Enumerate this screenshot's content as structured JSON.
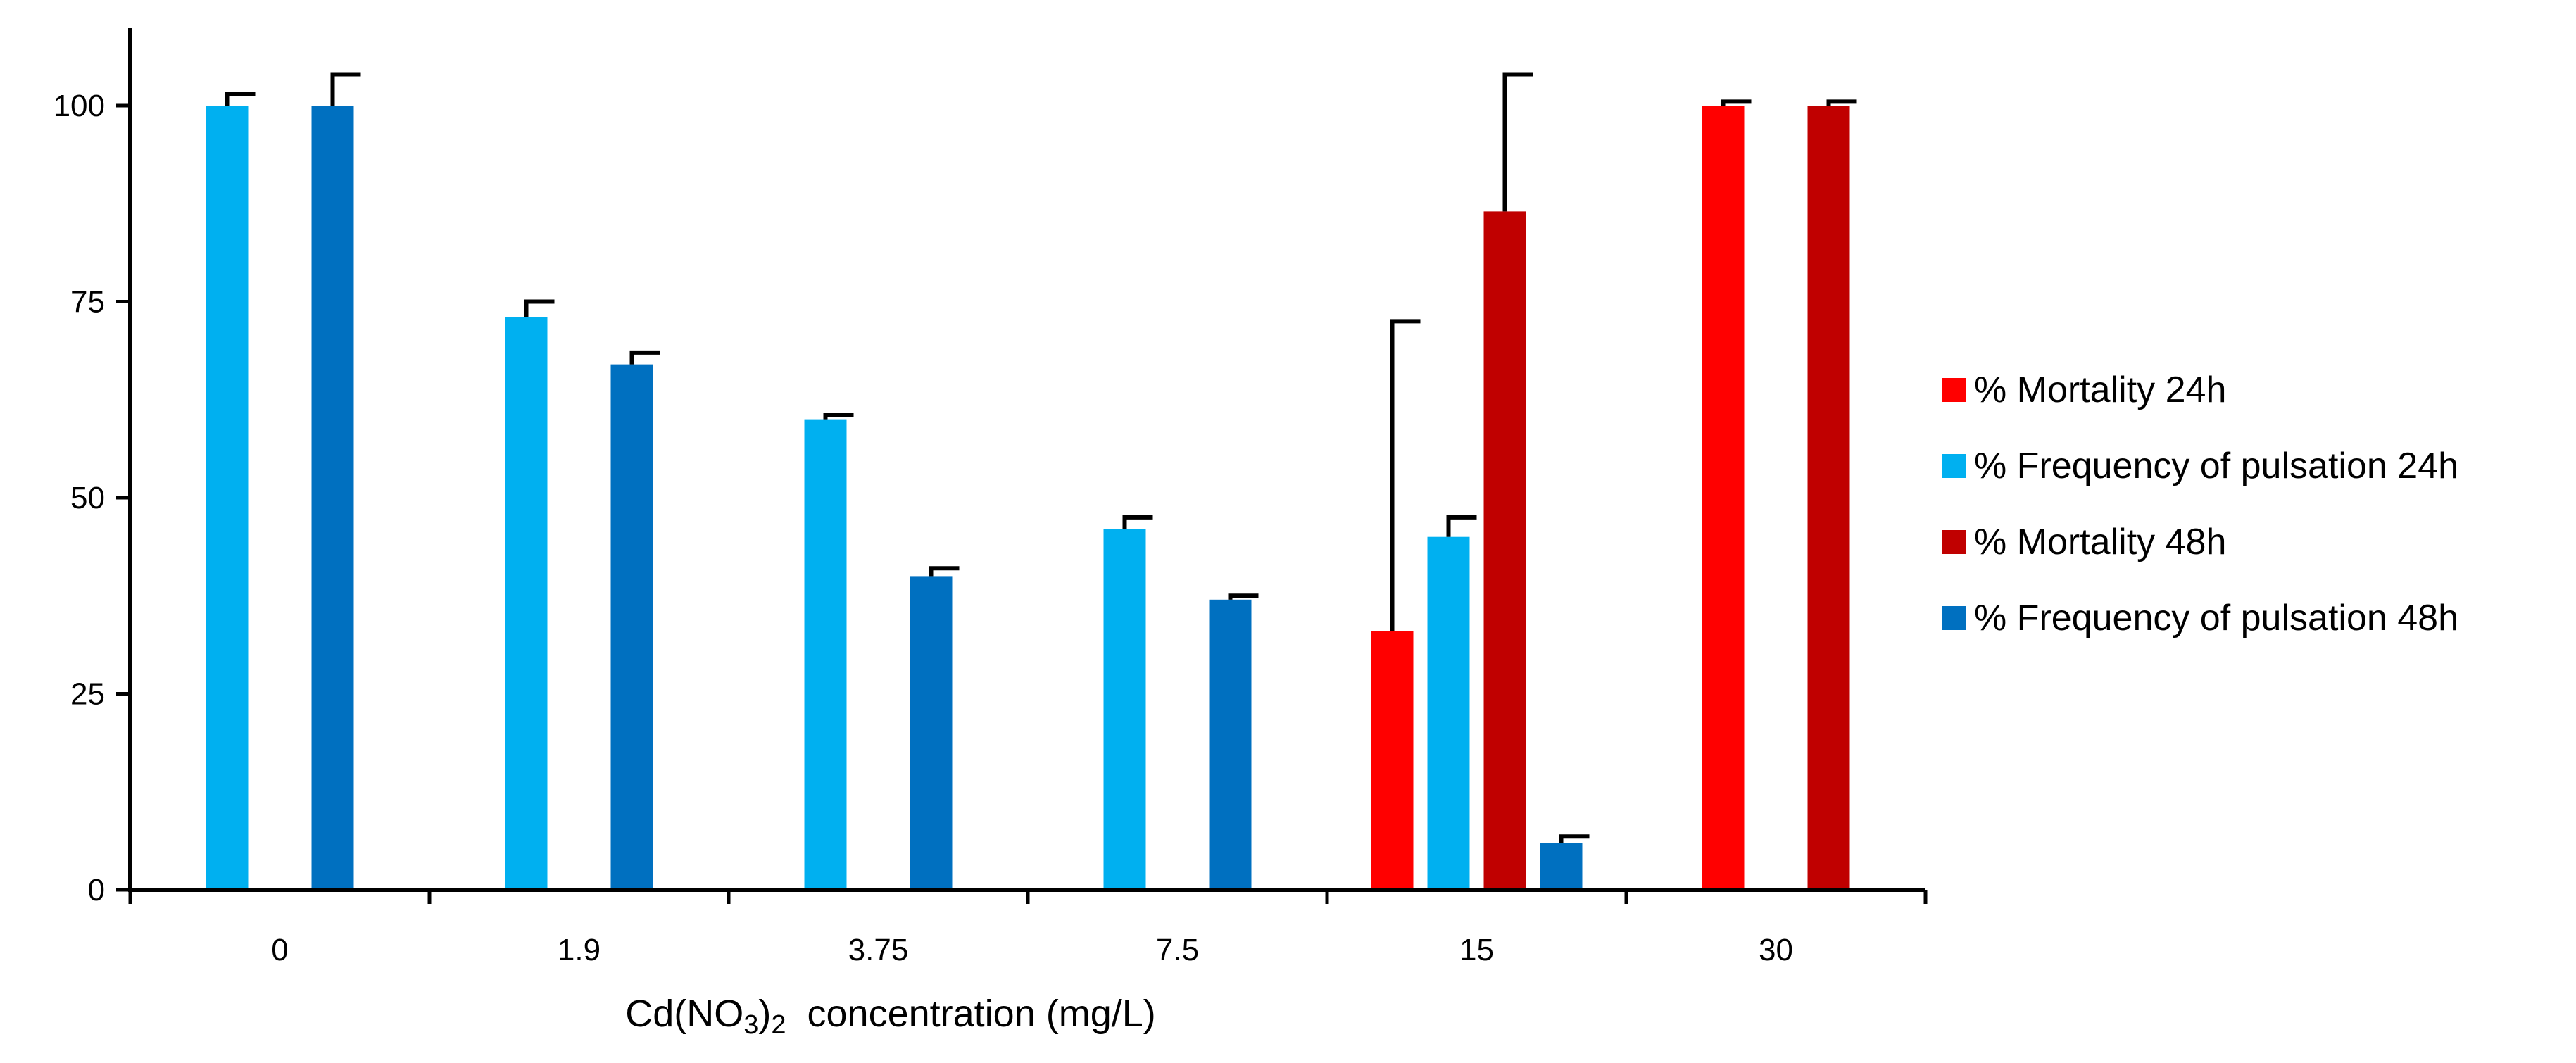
{
  "chart_data": {
    "type": "bar",
    "title": "",
    "xlabel": {
      "prefix": "Cd(NO",
      "sub1": "3",
      "mid": ")",
      "sub2": "2",
      "suffix": "  concentration (mg/L)"
    },
    "ylabel": "",
    "ylim": [
      0,
      105
    ],
    "yticks": [
      "0",
      "25",
      "50",
      "75",
      "100"
    ],
    "categories": [
      "0",
      "1.9",
      "3.75",
      "7.5",
      "15",
      "30"
    ],
    "series": [
      {
        "name": "% Mortality 24h",
        "color": "#FF0000",
        "values": [
          null,
          null,
          null,
          null,
          33,
          100
        ],
        "errors": [
          null,
          null,
          null,
          null,
          39.5,
          0.5
        ]
      },
      {
        "name": "% Frequency of pulsation 24h",
        "color": "#00B0F0",
        "values": [
          100,
          73,
          60,
          46,
          45,
          null
        ],
        "errors": [
          1.5,
          2,
          0.5,
          1.5,
          2.5,
          null
        ]
      },
      {
        "name": "% Mortality 48h",
        "color": "#C00000",
        "values": [
          null,
          null,
          null,
          null,
          86.5,
          100
        ],
        "errors": [
          null,
          null,
          null,
          null,
          17.5,
          0.5
        ]
      },
      {
        "name": "% Frequency of pulsation 48h",
        "color": "#0070C0",
        "values": [
          100,
          67,
          40,
          37,
          6,
          null
        ],
        "errors": [
          4,
          1.5,
          1,
          0.5,
          0.8,
          null
        ]
      }
    ],
    "grid": false,
    "legend_position": "right"
  }
}
